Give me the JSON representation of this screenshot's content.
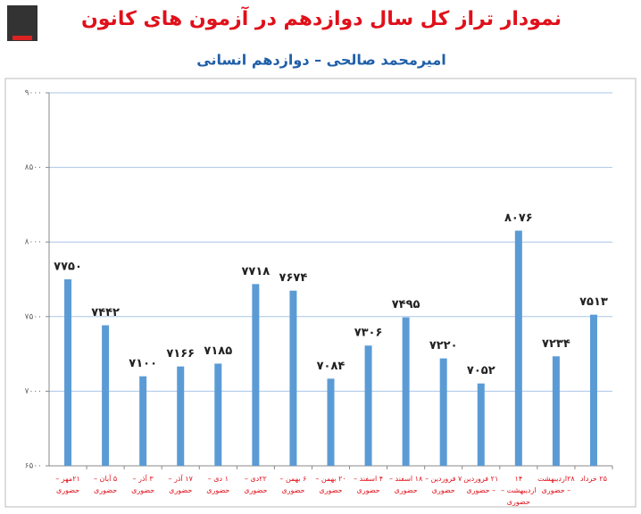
{
  "chart_data": {
    "type": "bar",
    "title": "نمودار تراز کل سال دوازدهم در آزمون های کانون",
    "subtitle": "امیرمحمد صالحی – دوازدهم انسانی",
    "categories": [
      "۲۱مهر – حضوری",
      "۵ آبان – حضوری",
      "۳ آذر – حضوری",
      "۱۷ آذر – حضوری",
      "۱ دی – حضوری",
      "۲۲دی – حضوری",
      "۶ بهمن – حضوری",
      "۲۰ بهمن – حضوری",
      "۴ اسفند – حضوری",
      "۱۸ اسفند – حضوری",
      "۷ فروردین – حضوری",
      "۲۱ فروردین – حضوری",
      "۱۴ اردیبهشت – حضوری",
      "۲۸اردیبهشت – حضوری",
      "۲۵ خرداد"
    ],
    "values": [
      7750,
      7442,
      7100,
      7166,
      7185,
      7718,
      7674,
      7084,
      7306,
      7495,
      7220,
      7052,
      8076,
      7234,
      7513
    ],
    "value_labels": [
      "۷۷۵۰",
      "۷۴۴۲",
      "۷۱۰۰",
      "۷۱۶۶",
      "۷۱۸۵",
      "۷۷۱۸",
      "۷۶۷۴",
      "۷۰۸۴",
      "۷۳۰۶",
      "۷۴۹۵",
      "۷۲۲۰",
      "۷۰۵۲",
      "۸۰۷۶",
      "۷۲۳۴",
      "۷۵۱۳"
    ],
    "color": "#5b9bd5",
    "ylim": [
      6500,
      9000
    ],
    "yticks": [
      {
        "value": 6500,
        "label": "۶۵۰۰"
      },
      {
        "value": 7000,
        "label": "۷۰۰۰"
      },
      {
        "value": 7500,
        "label": "۷۵۰۰"
      },
      {
        "value": 8000,
        "label": "۸۰۰۰"
      },
      {
        "value": 8500,
        "label": "۸۵۰۰"
      },
      {
        "value": 9000,
        "label": "۹۰۰۰"
      }
    ],
    "grid": true
  }
}
